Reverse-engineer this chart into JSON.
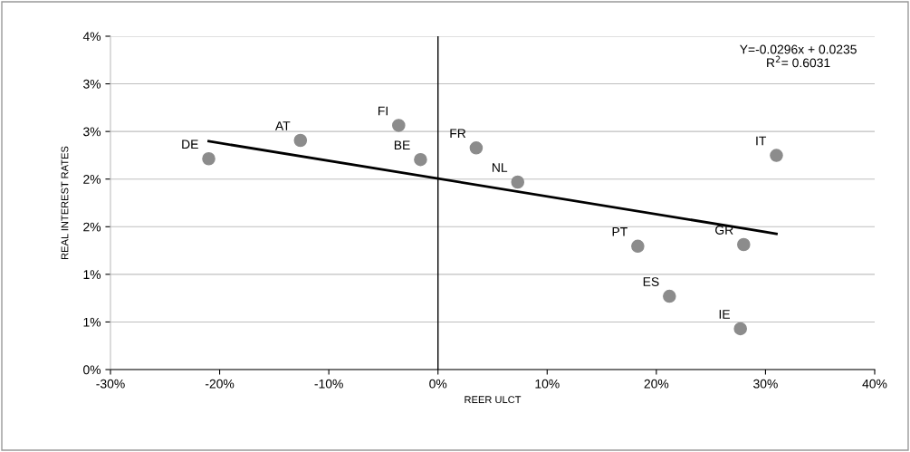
{
  "chart_data": {
    "type": "scatter",
    "xlabel": "REER ULCT",
    "ylabel": "REAL INTEREST RATES",
    "xlim": [
      -30,
      40
    ],
    "xticks": [
      {
        "value": -30,
        "label": "-30%"
      },
      {
        "value": -20,
        "label": "-20%"
      },
      {
        "value": -10,
        "label": "-10%"
      },
      {
        "value": 0,
        "label": "0%"
      },
      {
        "value": 10,
        "label": "10%"
      },
      {
        "value": 20,
        "label": "20%"
      },
      {
        "value": 30,
        "label": "30%"
      },
      {
        "value": 40,
        "label": "40%"
      }
    ],
    "ylim": [
      0,
      4
    ],
    "yticks": [
      {
        "value": 0,
        "label": "0%"
      },
      {
        "value": 0.571,
        "label": "1%"
      },
      {
        "value": 1.143,
        "label": "1%"
      },
      {
        "value": 1.714,
        "label": "2%"
      },
      {
        "value": 2.286,
        "label": "2%"
      },
      {
        "value": 2.857,
        "label": "3%"
      },
      {
        "value": 3.429,
        "label": "3%"
      },
      {
        "value": 4,
        "label": "4%"
      }
    ],
    "grid": "y",
    "legend": false,
    "series": [
      {
        "marker": "circle",
        "color": "#8c8c8c",
        "x": [
          -21.0,
          -12.6,
          -3.6,
          -1.6,
          3.5,
          7.3,
          31.0,
          18.3,
          28.0,
          21.2,
          27.7
        ],
        "values": [
          2.53,
          2.75,
          2.93,
          2.52,
          2.66,
          2.25,
          2.57,
          1.48,
          1.5,
          0.88,
          0.49
        ]
      },
      {
        "type": "line",
        "marker": "none",
        "color": "#000000",
        "x": [
          -21.0,
          31.0
        ],
        "values": [
          2.74,
          1.63
        ]
      }
    ],
    "ref_lines": [
      {
        "axis": "x",
        "value": 0,
        "color": "#000000"
      }
    ],
    "annotations": [
      {
        "text": "DE",
        "x": -21.0,
        "y": 2.53
      },
      {
        "text": "AT",
        "x": -12.6,
        "y": 2.75
      },
      {
        "text": "FI",
        "x": -3.6,
        "y": 2.93
      },
      {
        "text": "BE",
        "x": -1.6,
        "y": 2.52
      },
      {
        "text": "FR",
        "x": 3.5,
        "y": 2.66
      },
      {
        "text": "NL",
        "x": 7.3,
        "y": 2.25
      },
      {
        "text": "IT",
        "x": 31.0,
        "y": 2.57
      },
      {
        "text": "PT",
        "x": 18.3,
        "y": 1.48
      },
      {
        "text": "GR",
        "x": 28.0,
        "y": 1.5
      },
      {
        "text": "ES",
        "x": 21.2,
        "y": 0.88
      },
      {
        "text": "IE",
        "x": 27.7,
        "y": 0.49
      },
      "Y=-0.0296x + 0.0235\nR$^{2}$= 0.6031"
    ]
  }
}
